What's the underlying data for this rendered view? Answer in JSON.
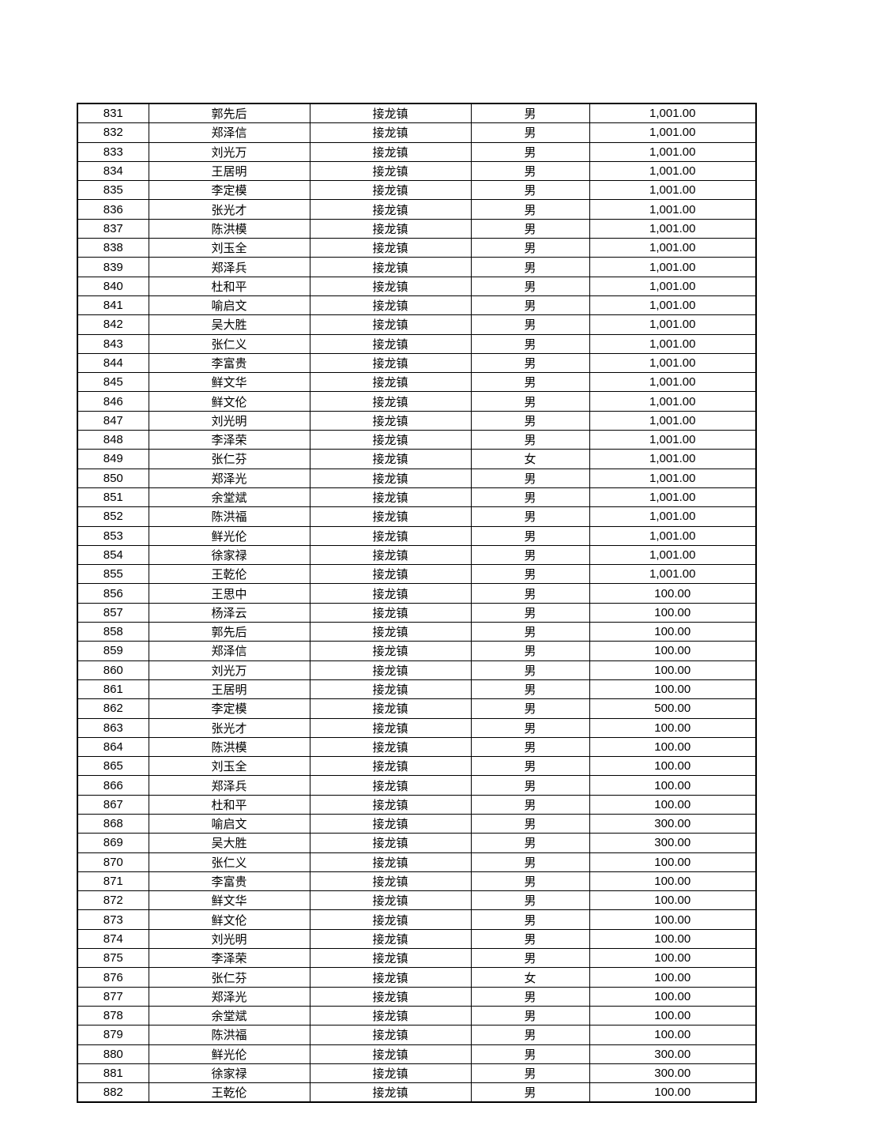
{
  "table": {
    "rows": [
      [
        "831",
        "郭先后",
        "接龙镇",
        "男",
        "1,001.00"
      ],
      [
        "832",
        "郑泽信",
        "接龙镇",
        "男",
        "1,001.00"
      ],
      [
        "833",
        "刘光万",
        "接龙镇",
        "男",
        "1,001.00"
      ],
      [
        "834",
        "王居明",
        "接龙镇",
        "男",
        "1,001.00"
      ],
      [
        "835",
        "李定模",
        "接龙镇",
        "男",
        "1,001.00"
      ],
      [
        "836",
        "张光才",
        "接龙镇",
        "男",
        "1,001.00"
      ],
      [
        "837",
        "陈洪模",
        "接龙镇",
        "男",
        "1,001.00"
      ],
      [
        "838",
        "刘玉全",
        "接龙镇",
        "男",
        "1,001.00"
      ],
      [
        "839",
        "郑泽兵",
        "接龙镇",
        "男",
        "1,001.00"
      ],
      [
        "840",
        "杜和平",
        "接龙镇",
        "男",
        "1,001.00"
      ],
      [
        "841",
        "喻启文",
        "接龙镇",
        "男",
        "1,001.00"
      ],
      [
        "842",
        "吴大胜",
        "接龙镇",
        "男",
        "1,001.00"
      ],
      [
        "843",
        "张仁义",
        "接龙镇",
        "男",
        "1,001.00"
      ],
      [
        "844",
        "李富贵",
        "接龙镇",
        "男",
        "1,001.00"
      ],
      [
        "845",
        "鲜文华",
        "接龙镇",
        "男",
        "1,001.00"
      ],
      [
        "846",
        "鲜文伦",
        "接龙镇",
        "男",
        "1,001.00"
      ],
      [
        "847",
        "刘光明",
        "接龙镇",
        "男",
        "1,001.00"
      ],
      [
        "848",
        "李泽荣",
        "接龙镇",
        "男",
        "1,001.00"
      ],
      [
        "849",
        "张仁芬",
        "接龙镇",
        "女",
        "1,001.00"
      ],
      [
        "850",
        "郑泽光",
        "接龙镇",
        "男",
        "1,001.00"
      ],
      [
        "851",
        "余堂斌",
        "接龙镇",
        "男",
        "1,001.00"
      ],
      [
        "852",
        "陈洪福",
        "接龙镇",
        "男",
        "1,001.00"
      ],
      [
        "853",
        "鲜光伦",
        "接龙镇",
        "男",
        "1,001.00"
      ],
      [
        "854",
        "徐家禄",
        "接龙镇",
        "男",
        "1,001.00"
      ],
      [
        "855",
        "王乾伦",
        "接龙镇",
        "男",
        "1,001.00"
      ],
      [
        "856",
        "王思中",
        "接龙镇",
        "男",
        "100.00"
      ],
      [
        "857",
        "杨泽云",
        "接龙镇",
        "男",
        "100.00"
      ],
      [
        "858",
        "郭先后",
        "接龙镇",
        "男",
        "100.00"
      ],
      [
        "859",
        "郑泽信",
        "接龙镇",
        "男",
        "100.00"
      ],
      [
        "860",
        "刘光万",
        "接龙镇",
        "男",
        "100.00"
      ],
      [
        "861",
        "王居明",
        "接龙镇",
        "男",
        "100.00"
      ],
      [
        "862",
        "李定模",
        "接龙镇",
        "男",
        "500.00"
      ],
      [
        "863",
        "张光才",
        "接龙镇",
        "男",
        "100.00"
      ],
      [
        "864",
        "陈洪模",
        "接龙镇",
        "男",
        "100.00"
      ],
      [
        "865",
        "刘玉全",
        "接龙镇",
        "男",
        "100.00"
      ],
      [
        "866",
        "郑泽兵",
        "接龙镇",
        "男",
        "100.00"
      ],
      [
        "867",
        "杜和平",
        "接龙镇",
        "男",
        "100.00"
      ],
      [
        "868",
        "喻启文",
        "接龙镇",
        "男",
        "300.00"
      ],
      [
        "869",
        "吴大胜",
        "接龙镇",
        "男",
        "300.00"
      ],
      [
        "870",
        "张仁义",
        "接龙镇",
        "男",
        "100.00"
      ],
      [
        "871",
        "李富贵",
        "接龙镇",
        "男",
        "100.00"
      ],
      [
        "872",
        "鲜文华",
        "接龙镇",
        "男",
        "100.00"
      ],
      [
        "873",
        "鲜文伦",
        "接龙镇",
        "男",
        "100.00"
      ],
      [
        "874",
        "刘光明",
        "接龙镇",
        "男",
        "100.00"
      ],
      [
        "875",
        "李泽荣",
        "接龙镇",
        "男",
        "100.00"
      ],
      [
        "876",
        "张仁芬",
        "接龙镇",
        "女",
        "100.00"
      ],
      [
        "877",
        "郑泽光",
        "接龙镇",
        "男",
        "100.00"
      ],
      [
        "878",
        "余堂斌",
        "接龙镇",
        "男",
        "100.00"
      ],
      [
        "879",
        "陈洪福",
        "接龙镇",
        "男",
        "100.00"
      ],
      [
        "880",
        "鲜光伦",
        "接龙镇",
        "男",
        "300.00"
      ],
      [
        "881",
        "徐家禄",
        "接龙镇",
        "男",
        "300.00"
      ],
      [
        "882",
        "王乾伦",
        "接龙镇",
        "男",
        "100.00"
      ]
    ]
  }
}
